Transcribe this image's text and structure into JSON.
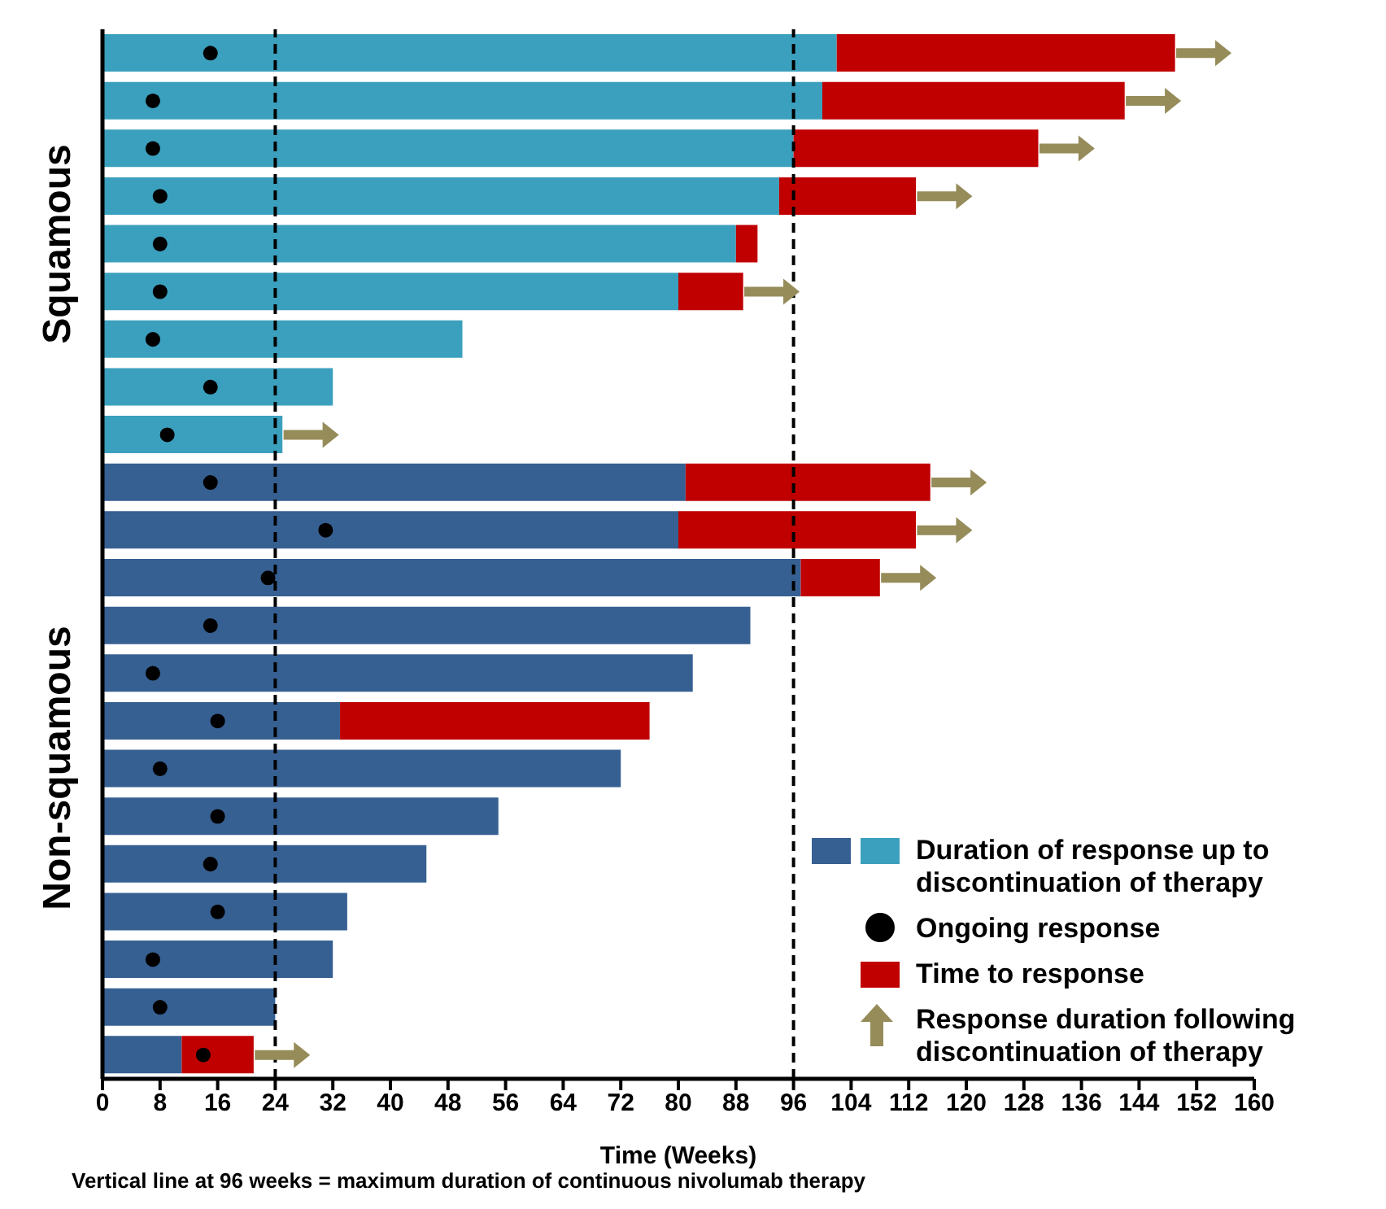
{
  "chart_data": {
    "type": "bar",
    "orientation": "horizontal",
    "stacked": true,
    "xlabel": "Time (Weeks)",
    "categories": [
      null,
      null,
      null,
      null,
      null,
      null,
      null,
      null,
      null,
      null,
      null,
      null,
      null,
      null,
      null,
      null,
      null,
      null,
      null,
      null,
      null,
      null
    ],
    "series": [
      {
        "name": "Duration of response up to discontinuation of therapy",
        "color": "#3ba0bd",
        "values": [
          102,
          100,
          96,
          94,
          88,
          80,
          50,
          32,
          25,
          null,
          null,
          null,
          null,
          null,
          null,
          null,
          null,
          null,
          null,
          null,
          null,
          null
        ]
      },
      {
        "color": "#376092",
        "values": [
          null,
          null,
          null,
          null,
          null,
          null,
          null,
          null,
          null,
          81,
          80,
          97,
          90,
          82,
          33,
          72,
          55,
          45,
          34,
          32,
          24,
          11
        ]
      },
      {
        "name": "Ongoing response",
        "type": "scatter",
        "marker": "circle",
        "color": "#000000",
        "values": [
          15,
          7,
          7,
          8,
          8,
          8,
          7,
          15,
          9,
          15,
          31,
          23,
          15,
          7,
          16,
          8,
          16,
          15,
          16,
          7,
          8,
          14
        ]
      },
      {
        "name": "Time to response",
        "color": "#c00000",
        "values": [
          47,
          42,
          34,
          19,
          3,
          9,
          null,
          null,
          null,
          34,
          33,
          11,
          null,
          null,
          43,
          null,
          null,
          null,
          null,
          null,
          null,
          10
        ]
      },
      {
        "name": "Response duration following discontinuation of therapy",
        "type": "scatter",
        "color": "#968c5a",
        "values": [
          153,
          146,
          134,
          117,
          null,
          93,
          null,
          null,
          29,
          119,
          117,
          112,
          null,
          null,
          null,
          null,
          null,
          null,
          null,
          null,
          null,
          25
        ]
      }
    ],
    "xlim": [
      0,
      160
    ],
    "xticks": [
      0,
      8,
      16,
      24,
      32,
      40,
      48,
      56,
      64,
      72,
      80,
      88,
      96,
      104,
      112,
      120,
      128,
      136,
      144,
      152,
      160
    ],
    "ref_lines": [
      {
        "axis": "x",
        "value": 24,
        "color": "#000000",
        "line_style": "dashed"
      },
      {
        "axis": "x",
        "value": 96,
        "color": "#000000",
        "line_style": "dashed"
      }
    ],
    "annotations": [
      "Squamous",
      "Non-squamous",
      "Vertical line at 96 weeks = maximum duration of continuous nivolumab therapy"
    ],
    "legend": "bottom right",
    "tick_labels": "x"
  }
}
